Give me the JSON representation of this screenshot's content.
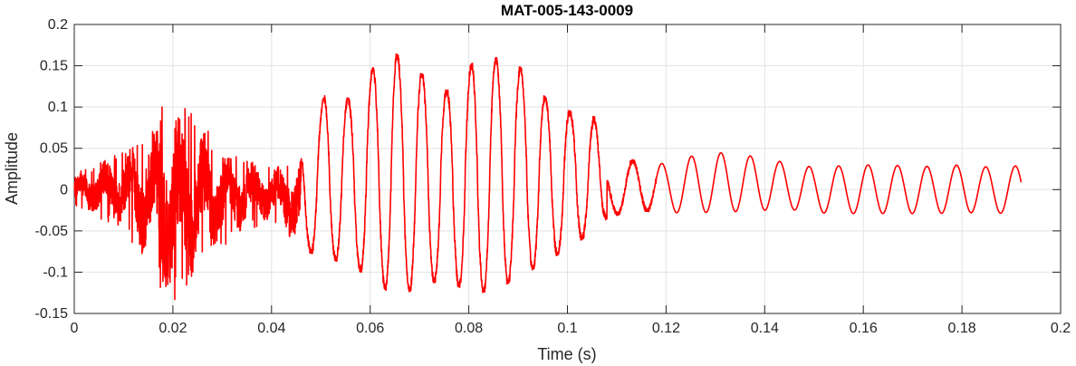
{
  "chart_data": {
    "type": "line",
    "title": "MAT-005-143-0009",
    "xlabel": "Time (s)",
    "ylabel": "Amplitude",
    "xlim": [
      0,
      0.2
    ],
    "ylim": [
      -0.15,
      0.2
    ],
    "grid": true,
    "x_ticks": [
      0,
      0.02,
      0.04,
      0.06,
      0.08,
      0.1,
      0.12,
      0.14,
      0.16,
      0.18,
      0.2
    ],
    "x_tick_labels": [
      "0",
      "0.02",
      "0.04",
      "0.06",
      "0.08",
      "0.1",
      "0.12",
      "0.14",
      "0.16",
      "0.18",
      "0.2"
    ],
    "y_ticks": [
      -0.15,
      -0.1,
      -0.05,
      0,
      0.05,
      0.1,
      0.15,
      0.2
    ],
    "y_tick_labels": [
      "-0.15",
      "-0.1",
      "-0.05",
      "0",
      "0.05",
      "0.1",
      "0.15",
      "0.2"
    ],
    "series": [
      {
        "color": "#ff0000",
        "envelope": {
          "t": [
            0.0,
            0.01,
            0.02,
            0.025,
            0.03,
            0.035,
            0.04,
            0.046,
            0.051,
            0.056,
            0.0605,
            0.065,
            0.0705,
            0.0755,
            0.081,
            0.086,
            0.0905,
            0.0955,
            0.1005,
            0.1055,
            0.108,
            0.1132,
            0.12,
            0.126,
            0.132,
            0.138,
            0.144,
            0.15,
            0.156,
            0.162,
            0.168,
            0.174,
            0.18,
            0.186,
            0.192
          ],
          "y_max": [
            0.02,
            0.05,
            0.115,
            0.09,
            0.05,
            0.04,
            0.03,
            0.048,
            0.117,
            0.11,
            0.147,
            0.166,
            0.14,
            0.12,
            0.155,
            0.16,
            0.148,
            0.112,
            0.095,
            0.088,
            0.02,
            0.036,
            0.031,
            0.042,
            0.045,
            0.04,
            0.033,
            0.027,
            0.029,
            0.03,
            0.029,
            0.028,
            0.03,
            0.027,
            0.029
          ],
          "y_min": [
            -0.02,
            -0.05,
            -0.145,
            -0.11,
            -0.07,
            -0.05,
            -0.04,
            -0.075,
            -0.08,
            -0.095,
            -0.105,
            -0.133,
            -0.115,
            -0.11,
            -0.127,
            -0.12,
            -0.105,
            -0.088,
            -0.07,
            -0.05,
            -0.035,
            -0.025,
            -0.028,
            -0.028,
            -0.027,
            -0.026,
            -0.023,
            -0.028,
            -0.029,
            -0.029,
            -0.029,
            -0.029,
            -0.028,
            -0.028,
            -0.03
          ]
        },
        "peak_period": 0.005,
        "segments": [
          {
            "from": 0.0,
            "to": 0.046,
            "kind": "noise"
          },
          {
            "from": 0.046,
            "to": 0.108,
            "kind": "oscillation"
          },
          {
            "from": 0.108,
            "to": 0.1925,
            "kind": "sine"
          }
        ]
      }
    ]
  }
}
